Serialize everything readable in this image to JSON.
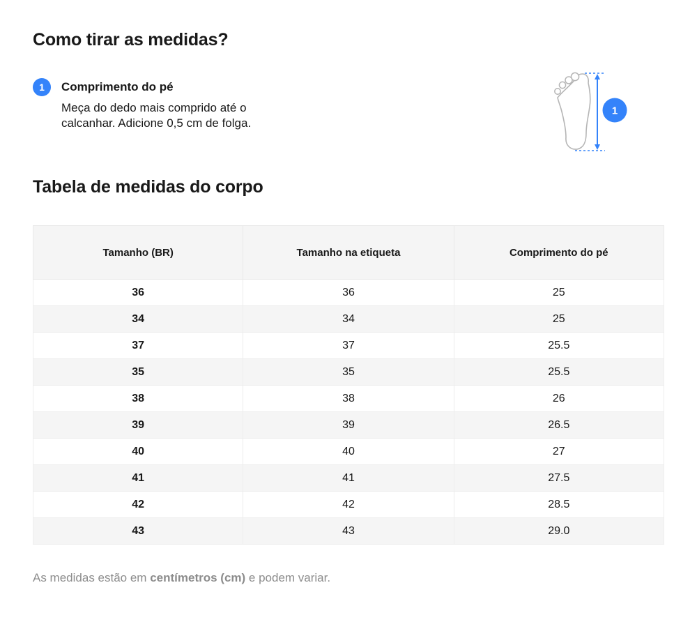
{
  "page": {
    "title": "Como tirar as medidas?",
    "accent_color": "#3483fa"
  },
  "step": {
    "number": "1",
    "title": "Comprimento do pé",
    "description": "Meça do dedo mais comprido até o calcanhar. Adicione 0,5 cm de folga."
  },
  "illustration": {
    "marker_label": "1"
  },
  "table": {
    "title": "Tabela de medidas do corpo",
    "columns": [
      "Tamanho (BR)",
      "Tamanho na etiqueta",
      "Comprimento do pé"
    ],
    "rows": [
      [
        "36",
        "36",
        "25"
      ],
      [
        "34",
        "34",
        "25"
      ],
      [
        "37",
        "37",
        "25.5"
      ],
      [
        "35",
        "35",
        "25.5"
      ],
      [
        "38",
        "38",
        "26"
      ],
      [
        "39",
        "39",
        "26.5"
      ],
      [
        "40",
        "40",
        "27"
      ],
      [
        "41",
        "41",
        "27.5"
      ],
      [
        "42",
        "42",
        "28.5"
      ],
      [
        "43",
        "43",
        "29.0"
      ]
    ]
  },
  "footnote": {
    "prefix": "As medidas estão em ",
    "bold": "centímetros (cm)",
    "suffix": " e podem variar."
  }
}
